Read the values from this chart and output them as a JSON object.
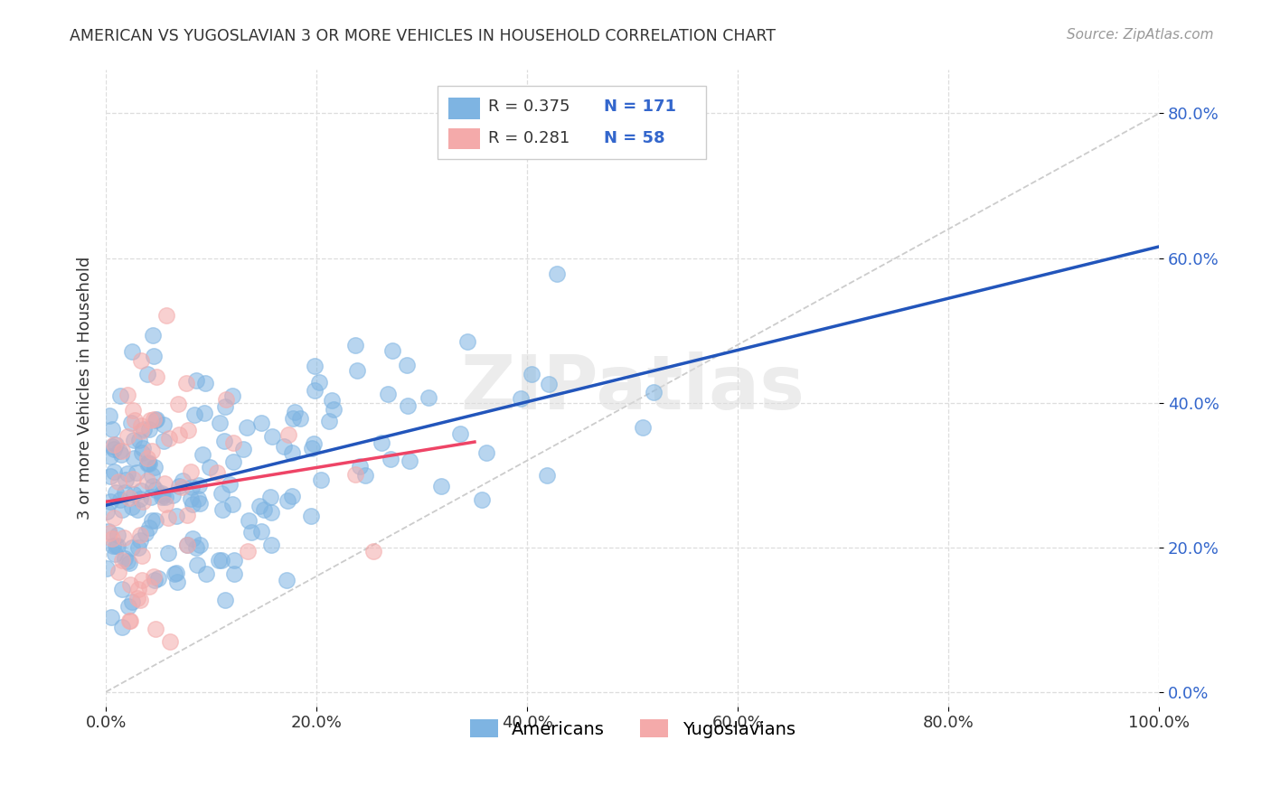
{
  "title": "AMERICAN VS YUGOSLAVIAN 3 OR MORE VEHICLES IN HOUSEHOLD CORRELATION CHART",
  "source": "Source: ZipAtlas.com",
  "ylabel": "3 or more Vehicles in Household",
  "legend_labels": [
    "Americans",
    "Yugoslavians"
  ],
  "blue_color": "#7EB4E2",
  "pink_color": "#F4AAAA",
  "blue_line_color": "#2255BB",
  "pink_line_color": "#EE4466",
  "diag_color": "#CCCCCC",
  "blue_R": 0.375,
  "blue_N": 171,
  "pink_R": 0.281,
  "pink_N": 58,
  "watermark": "ZIPatlas",
  "xlim": [
    0.0,
    1.0
  ],
  "ylim": [
    -0.02,
    0.86
  ],
  "xticks": [
    0.0,
    0.2,
    0.4,
    0.6,
    0.8,
    1.0
  ],
  "xticklabels": [
    "0.0%",
    "20.0%",
    "40.0%",
    "60.0%",
    "80.0%",
    "100.0%"
  ],
  "yticks": [
    0.0,
    0.2,
    0.4,
    0.6,
    0.8
  ],
  "yticklabels": [
    "0.0%",
    "20.0%",
    "40.0%",
    "60.0%",
    "80.0%"
  ],
  "blue_seed": 42,
  "pink_seed": 123,
  "grid_color": "#DDDDDD",
  "title_color": "#333333",
  "source_color": "#999999",
  "ylabel_color": "#333333",
  "ytick_color": "#3366CC",
  "xtick_color": "#333333"
}
